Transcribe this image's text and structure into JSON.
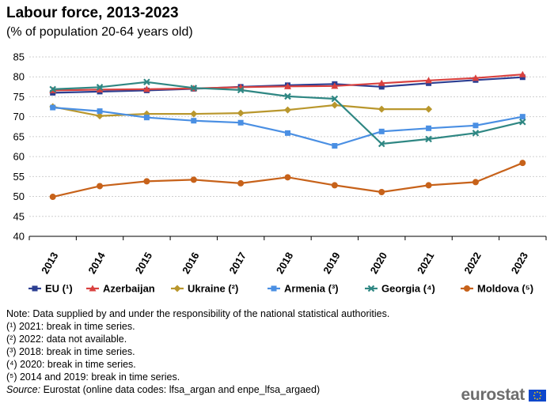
{
  "title": "Labour force, 2013-2023",
  "subtitle": "(% of population  20-64 years old)",
  "notes": {
    "lines": [
      "Note: Data supplied by and under the responsibility of the national statistical authorities.",
      "(¹) 2021: break in time series.",
      "(²) 2022: data not available.",
      "(³) 2018: break in time series.",
      "(⁴) 2020: break in time series.",
      "(⁵) 2014 and 2019: break in time series."
    ],
    "source_label": "Source:",
    "source_text": " Eurostat (online data codes: lfsa_argan and enpe_lfsa_argaed)"
  },
  "logo_text": "eurostat",
  "chart_data": {
    "type": "line",
    "title": "Labour force, 2013-2023",
    "xlabel": "",
    "ylabel": "",
    "ylim": [
      40,
      85
    ],
    "yticks": [
      40,
      45,
      50,
      55,
      60,
      65,
      70,
      75,
      80,
      85
    ],
    "grid": true,
    "legend_position": "bottom",
    "categories": [
      "2013",
      "2014",
      "2015",
      "2016",
      "2017",
      "2018",
      "2019",
      "2020",
      "2021",
      "2022",
      "2023"
    ],
    "series": [
      {
        "name": "EU (¹)",
        "color": "#2c3f92",
        "marker": "square",
        "values": [
          76.0,
          76.3,
          76.6,
          77.0,
          77.5,
          77.9,
          78.2,
          77.5,
          78.4,
          79.2,
          79.9
        ]
      },
      {
        "name": "Azerbaijan",
        "color": "#d9413f",
        "marker": "triangle",
        "values": [
          76.6,
          76.8,
          76.9,
          77.1,
          77.4,
          77.6,
          77.7,
          78.4,
          79.1,
          79.7,
          80.6
        ]
      },
      {
        "name": "Ukraine (²)",
        "color": "#b9972d",
        "marker": "diamond",
        "values": [
          72.5,
          70.2,
          70.7,
          70.7,
          70.9,
          71.7,
          72.9,
          71.9,
          71.9,
          null,
          null
        ]
      },
      {
        "name": "Armenia (³)",
        "color": "#4a8fe3",
        "marker": "square",
        "values": [
          72.3,
          71.4,
          69.8,
          69.0,
          68.5,
          65.9,
          62.7,
          66.3,
          67.1,
          67.8,
          70.0
        ]
      },
      {
        "name": "Georgia (⁴)",
        "color": "#2f8783",
        "marker": "x",
        "values": [
          76.9,
          77.4,
          78.7,
          77.2,
          76.7,
          75.1,
          74.5,
          63.2,
          64.4,
          65.9,
          68.7
        ]
      },
      {
        "name": "Moldova (⁵)",
        "color": "#c7621a",
        "marker": "circle",
        "values": [
          49.9,
          52.6,
          53.8,
          54.2,
          53.3,
          54.8,
          52.8,
          51.1,
          52.8,
          53.6,
          58.4
        ]
      }
    ]
  }
}
